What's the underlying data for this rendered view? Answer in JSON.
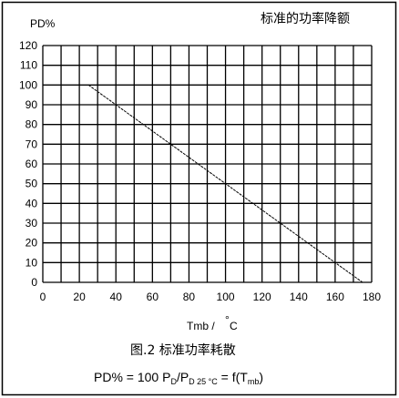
{
  "chart_data": {
    "type": "line",
    "title": "标准的功率降额",
    "ylabel": "PD%",
    "xlabel_main": "Tmb /",
    "xlabel_deg": "°",
    "xlabel_unit": "C",
    "caption": "图.2 标准功率耗散",
    "formula": {
      "a": "PD% = 100 P",
      "s1": "D",
      "b": "/P",
      "s2": "D 25 °C",
      "c": " = f(T",
      "s3": "mb",
      "d": ")"
    },
    "xlim": [
      0,
      180
    ],
    "ylim": [
      0,
      120
    ],
    "x_ticks": [
      0,
      20,
      40,
      60,
      80,
      100,
      120,
      140,
      160,
      180
    ],
    "y_ticks": [
      0,
      10,
      20,
      30,
      40,
      50,
      60,
      70,
      80,
      90,
      100,
      110,
      120
    ],
    "grid": true,
    "x_grid_step": 10,
    "y_grid_step": 10,
    "series": [
      {
        "x": [
          25,
          175
        ],
        "y": [
          100,
          0
        ],
        "color": "#000000",
        "style": "dashed"
      }
    ]
  }
}
